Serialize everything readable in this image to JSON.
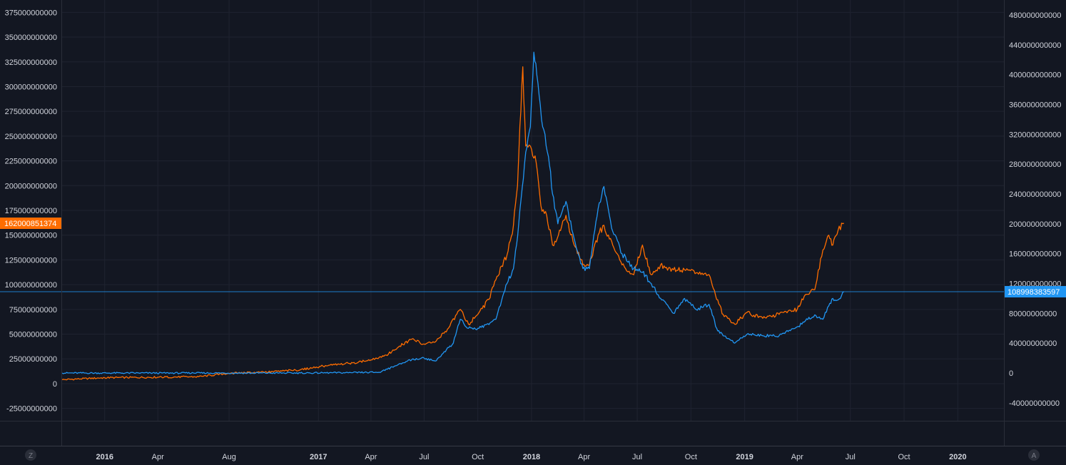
{
  "chart_data": {
    "type": "line",
    "title": "",
    "xlabel": "",
    "ylabel": "",
    "x_range": [
      "2015-10-20",
      "2020-03-20"
    ],
    "x_ticks": [
      {
        "date": "2016-01-01",
        "label": "2016",
        "bold": true
      },
      {
        "date": "2016-04-01",
        "label": "Apr",
        "bold": false
      },
      {
        "date": "2016-08-01",
        "label": "Aug",
        "bold": false
      },
      {
        "date": "2017-01-01",
        "label": "2017",
        "bold": true
      },
      {
        "date": "2017-04-01",
        "label": "Apr",
        "bold": false
      },
      {
        "date": "2017-07-01",
        "label": "Jul",
        "bold": false
      },
      {
        "date": "2017-10-01",
        "label": "Oct",
        "bold": false
      },
      {
        "date": "2018-01-01",
        "label": "2018",
        "bold": true
      },
      {
        "date": "2018-04-01",
        "label": "Apr",
        "bold": false
      },
      {
        "date": "2018-07-01",
        "label": "Jul",
        "bold": false
      },
      {
        "date": "2018-10-01",
        "label": "Oct",
        "bold": false
      },
      {
        "date": "2019-01-01",
        "label": "2019",
        "bold": true
      },
      {
        "date": "2019-04-01",
        "label": "Apr",
        "bold": false
      },
      {
        "date": "2019-07-01",
        "label": "Jul",
        "bold": false
      },
      {
        "date": "2019-10-01",
        "label": "Oct",
        "bold": false
      },
      {
        "date": "2020-01-01",
        "label": "2020",
        "bold": true
      }
    ],
    "left_axis": {
      "range": [
        -37500000000,
        387500000000
      ],
      "ticks": [
        "375000000000",
        "350000000000",
        "325000000000",
        "300000000000",
        "275000000000",
        "250000000000",
        "225000000000",
        "200000000000",
        "175000000000",
        "150000000000",
        "125000000000",
        "100000000000",
        "75000000000",
        "50000000000",
        "25000000000",
        "0",
        "-25000000000"
      ]
    },
    "right_axis": {
      "range": [
        -64000000000,
        500000000000
      ],
      "ticks": [
        "480000000000",
        "440000000000",
        "400000000000",
        "360000000000",
        "320000000000",
        "280000000000",
        "240000000000",
        "200000000000",
        "160000000000",
        "120000000000",
        "80000000000",
        "40000000000",
        "0",
        "-40000000000"
      ]
    },
    "grid": true,
    "series": [
      {
        "axis": "left",
        "color": "#ff6d00",
        "last_value_label": "162000851374",
        "x": [
          "2015-10-20",
          "2016-01-01",
          "2016-04-01",
          "2016-06-10",
          "2016-08-01",
          "2016-10-01",
          "2016-12-01",
          "2017-01-05",
          "2017-03-01",
          "2017-04-01",
          "2017-05-01",
          "2017-05-20",
          "2017-06-10",
          "2017-07-01",
          "2017-07-20",
          "2017-08-10",
          "2017-09-01",
          "2017-09-15",
          "2017-10-01",
          "2017-10-20",
          "2017-11-01",
          "2017-11-20",
          "2017-12-01",
          "2017-12-08",
          "2017-12-12",
          "2017-12-17",
          "2017-12-22",
          "2017-12-30",
          "2018-01-07",
          "2018-01-17",
          "2018-01-27",
          "2018-02-06",
          "2018-02-16",
          "2018-03-01",
          "2018-03-15",
          "2018-03-30",
          "2018-04-10",
          "2018-04-25",
          "2018-05-05",
          "2018-05-20",
          "2018-06-05",
          "2018-06-25",
          "2018-07-10",
          "2018-07-25",
          "2018-08-10",
          "2018-09-01",
          "2018-09-20",
          "2018-10-10",
          "2018-11-01",
          "2018-11-14",
          "2018-11-25",
          "2018-12-15",
          "2019-01-05",
          "2019-02-01",
          "2019-03-01",
          "2019-04-01",
          "2019-04-15",
          "2019-05-01",
          "2019-05-15",
          "2019-05-25",
          "2019-06-01",
          "2019-06-10",
          "2019-06-20"
        ],
        "y": [
          4000000000,
          6000000000,
          6500000000,
          7000000000,
          10500000000,
          11500000000,
          14000000000,
          17500000000,
          21000000000,
          24000000000,
          30000000000,
          38000000000,
          45000000000,
          40000000000,
          42000000000,
          55000000000,
          75000000000,
          60000000000,
          70000000000,
          85000000000,
          105000000000,
          130000000000,
          160000000000,
          200000000000,
          260000000000,
          320000000000,
          240000000000,
          240000000000,
          230000000000,
          180000000000,
          170000000000,
          140000000000,
          150000000000,
          170000000000,
          140000000000,
          120000000000,
          120000000000,
          150000000000,
          160000000000,
          140000000000,
          120000000000,
          110000000000,
          140000000000,
          110000000000,
          120000000000,
          115000000000,
          115000000000,
          112000000000,
          110000000000,
          85000000000,
          70000000000,
          60000000000,
          72000000000,
          66000000000,
          70000000000,
          75000000000,
          90000000000,
          95000000000,
          135000000000,
          150000000000,
          140000000000,
          155000000000,
          162000000000
        ]
      },
      {
        "axis": "right",
        "color": "#2196f3",
        "last_value_label": "108998383597",
        "x": [
          "2015-10-20",
          "2016-06-01",
          "2016-12-01",
          "2017-03-01",
          "2017-04-15",
          "2017-05-15",
          "2017-06-10",
          "2017-07-01",
          "2017-07-20",
          "2017-08-20",
          "2017-09-01",
          "2017-09-15",
          "2017-10-01",
          "2017-10-20",
          "2017-11-01",
          "2017-11-20",
          "2017-12-01",
          "2017-12-10",
          "2017-12-20",
          "2017-12-30",
          "2018-01-05",
          "2018-01-10",
          "2018-01-20",
          "2018-01-30",
          "2018-02-06",
          "2018-02-15",
          "2018-03-01",
          "2018-03-15",
          "2018-03-30",
          "2018-04-10",
          "2018-04-25",
          "2018-05-05",
          "2018-05-20",
          "2018-06-05",
          "2018-06-25",
          "2018-07-10",
          "2018-07-25",
          "2018-08-10",
          "2018-09-01",
          "2018-09-20",
          "2018-10-10",
          "2018-11-01",
          "2018-11-14",
          "2018-11-25",
          "2018-12-15",
          "2019-01-05",
          "2019-02-01",
          "2019-03-01",
          "2019-04-01",
          "2019-04-15",
          "2019-05-01",
          "2019-05-15",
          "2019-05-25",
          "2019-06-01",
          "2019-06-10",
          "2019-06-20"
        ],
        "y": [
          0,
          0,
          0,
          500000000,
          1000000000,
          10000000000,
          18000000000,
          20000000000,
          16000000000,
          40000000000,
          72000000000,
          60000000000,
          60000000000,
          65000000000,
          72000000000,
          120000000000,
          140000000000,
          200000000000,
          280000000000,
          330000000000,
          430000000000,
          400000000000,
          330000000000,
          290000000000,
          240000000000,
          200000000000,
          230000000000,
          180000000000,
          140000000000,
          140000000000,
          220000000000,
          250000000000,
          190000000000,
          160000000000,
          140000000000,
          135000000000,
          120000000000,
          100000000000,
          80000000000,
          100000000000,
          85000000000,
          92000000000,
          60000000000,
          50000000000,
          40000000000,
          52000000000,
          50000000000,
          50000000000,
          62000000000,
          70000000000,
          78000000000,
          72000000000,
          90000000000,
          100000000000,
          98000000000,
          109000000000
        ]
      }
    ],
    "price_lines": [
      {
        "axis": "right",
        "value": 108998383597,
        "color": "#2196f3"
      }
    ],
    "corner_buttons": {
      "left": "Z",
      "right": "A"
    }
  }
}
